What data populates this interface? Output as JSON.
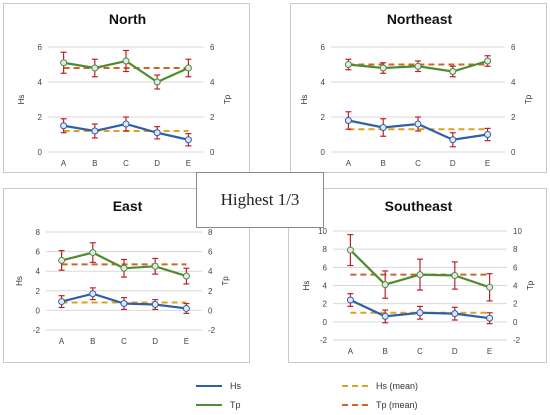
{
  "center_label": "Highest 1/3",
  "colors": {
    "hs": "#2e5fa8",
    "tp": "#4e8c2e",
    "hs_mean": "#e0a020",
    "tp_mean": "#d0632a",
    "err": "#c0202a"
  },
  "legend": [
    {
      "label": "Hs",
      "color": "#2e5fa8",
      "dashed": false
    },
    {
      "label": "Hs (mean)",
      "color": "#e0a020",
      "dashed": true
    },
    {
      "label": "Tp",
      "color": "#4e8c2e",
      "dashed": false
    },
    {
      "label": "Tp (mean)",
      "color": "#d0632a",
      "dashed": true
    }
  ],
  "chart_data": [
    {
      "type": "line",
      "title": "North",
      "ylabel_left": "Hs",
      "ylabel_right": "Tp",
      "categories": [
        "A",
        "B",
        "C",
        "D",
        "E"
      ],
      "ylim": [
        0,
        6
      ],
      "yticks": [
        0,
        2,
        4,
        6
      ],
      "series": [
        {
          "name": "Hs",
          "values": [
            1.5,
            1.2,
            1.6,
            1.1,
            0.7
          ],
          "err": [
            0.4,
            0.4,
            0.4,
            0.35,
            0.35
          ]
        },
        {
          "name": "Tp",
          "values": [
            5.1,
            4.8,
            5.2,
            4.0,
            4.8
          ],
          "err": [
            0.6,
            0.5,
            0.6,
            0.4,
            0.5
          ]
        },
        {
          "name": "Hs (mean)",
          "values": [
            1.2,
            1.2,
            1.2,
            1.2,
            1.2
          ]
        },
        {
          "name": "Tp (mean)",
          "values": [
            4.8,
            4.8,
            4.8,
            4.8,
            4.8
          ]
        }
      ]
    },
    {
      "type": "line",
      "title": "Northeast",
      "ylabel_left": "Hs",
      "ylabel_right": "Tp",
      "categories": [
        "A",
        "B",
        "C",
        "D",
        "E"
      ],
      "ylim": [
        0,
        6
      ],
      "yticks": [
        0,
        2,
        4,
        6
      ],
      "series": [
        {
          "name": "Hs",
          "values": [
            1.8,
            1.4,
            1.6,
            0.7,
            1.0
          ],
          "err": [
            0.5,
            0.5,
            0.4,
            0.4,
            0.35
          ]
        },
        {
          "name": "Tp",
          "values": [
            5.0,
            4.8,
            4.9,
            4.6,
            5.2
          ],
          "err": [
            0.3,
            0.3,
            0.3,
            0.3,
            0.3
          ]
        },
        {
          "name": "Hs (mean)",
          "values": [
            1.3,
            1.3,
            1.3,
            1.3,
            1.3
          ]
        },
        {
          "name": "Tp (mean)",
          "values": [
            5.0,
            5.0,
            5.0,
            5.0,
            5.0
          ]
        }
      ]
    },
    {
      "type": "line",
      "title": "East",
      "ylabel_left": "Hs",
      "ylabel_right": "Tp",
      "categories": [
        "A",
        "B",
        "C",
        "D",
        "E"
      ],
      "ylim": [
        -2,
        8
      ],
      "yticks": [
        -2,
        0,
        2,
        4,
        6,
        8
      ],
      "series": [
        {
          "name": "Hs",
          "values": [
            0.9,
            1.7,
            0.7,
            0.6,
            0.2
          ],
          "err": [
            0.6,
            0.6,
            0.6,
            0.5,
            0.5
          ]
        },
        {
          "name": "Tp",
          "values": [
            5.1,
            5.9,
            4.3,
            4.5,
            3.5
          ],
          "err": [
            1.0,
            1.0,
            0.9,
            0.8,
            0.8
          ]
        },
        {
          "name": "Hs (mean)",
          "values": [
            0.8,
            0.8,
            0.8,
            0.8,
            0.8
          ]
        },
        {
          "name": "Tp (mean)",
          "values": [
            4.7,
            4.7,
            4.7,
            4.7,
            4.7
          ]
        }
      ]
    },
    {
      "type": "line",
      "title": "Southeast",
      "ylabel_left": "Hs",
      "ylabel_right": "Tp",
      "categories": [
        "A",
        "B",
        "C",
        "D",
        "E"
      ],
      "ylim": [
        -2,
        10
      ],
      "yticks": [
        -2,
        0,
        2,
        4,
        6,
        8,
        10
      ],
      "series": [
        {
          "name": "Hs",
          "values": [
            2.4,
            0.6,
            1.0,
            0.9,
            0.4
          ],
          "err": [
            0.7,
            0.7,
            0.7,
            0.7,
            0.6
          ]
        },
        {
          "name": "Tp",
          "values": [
            7.9,
            4.1,
            5.2,
            5.1,
            3.8
          ],
          "err": [
            1.7,
            1.5,
            1.7,
            1.5,
            1.5
          ]
        },
        {
          "name": "Hs (mean)",
          "values": [
            1.0,
            1.0,
            1.0,
            1.0,
            1.0
          ]
        },
        {
          "name": "Tp (mean)",
          "values": [
            5.2,
            5.2,
            5.2,
            5.2,
            5.2
          ]
        }
      ]
    }
  ]
}
